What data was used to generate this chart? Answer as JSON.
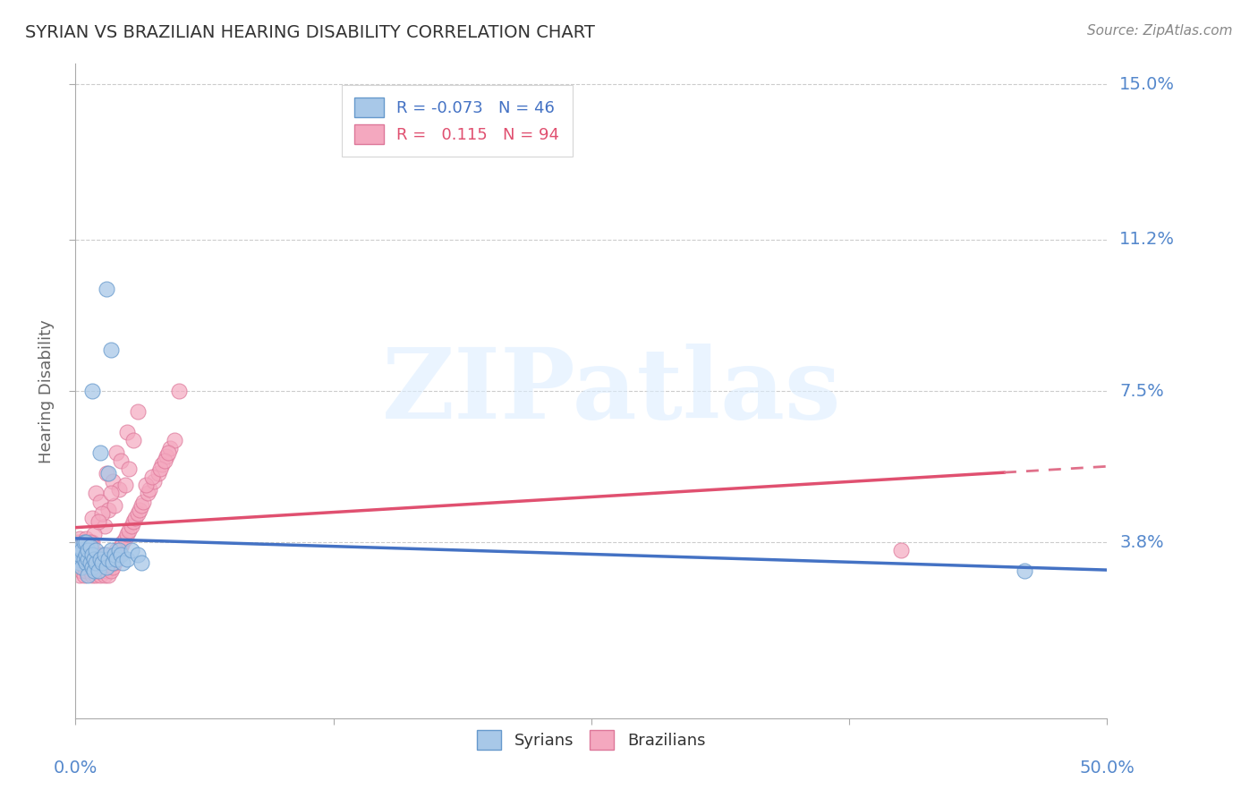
{
  "title": "SYRIAN VS BRAZILIAN HEARING DISABILITY CORRELATION CHART",
  "source": "Source: ZipAtlas.com",
  "ylabel": "Hearing Disability",
  "xlim": [
    0.0,
    0.5
  ],
  "ylim": [
    -0.005,
    0.155
  ],
  "ytick_positions": [
    0.038,
    0.075,
    0.112,
    0.15
  ],
  "ytick_labels": [
    "3.8%",
    "7.5%",
    "11.2%",
    "15.0%"
  ],
  "xtick_positions": [
    0.0,
    0.125,
    0.25,
    0.375,
    0.5
  ],
  "syrian_color": "#a8c8e8",
  "brazilian_color": "#f4a8bf",
  "syrian_edge": "#6699cc",
  "brazilian_edge": "#dd7799",
  "line_syrian_color": "#4472c4",
  "line_brazilian_color": "#e05070",
  "line_brazilian_dash_color": "#e0708a",
  "R_syrian": -0.073,
  "N_syrian": 46,
  "R_brazilian": 0.115,
  "N_brazilian": 94,
  "watermark_text": "ZIPatlas",
  "grid_color": "#cccccc",
  "title_color": "#333333",
  "axis_label_color": "#5588cc",
  "syrian_scatter_x": [
    0.001,
    0.001,
    0.002,
    0.002,
    0.002,
    0.003,
    0.003,
    0.004,
    0.004,
    0.005,
    0.005,
    0.005,
    0.006,
    0.006,
    0.006,
    0.007,
    0.007,
    0.008,
    0.008,
    0.009,
    0.009,
    0.01,
    0.01,
    0.011,
    0.012,
    0.013,
    0.014,
    0.015,
    0.016,
    0.017,
    0.018,
    0.019,
    0.02,
    0.021,
    0.022,
    0.023,
    0.025,
    0.027,
    0.03,
    0.032,
    0.008,
    0.012,
    0.016,
    0.46,
    0.015,
    0.017
  ],
  "syrian_scatter_y": [
    0.034,
    0.036,
    0.033,
    0.035,
    0.037,
    0.032,
    0.036,
    0.034,
    0.038,
    0.033,
    0.035,
    0.038,
    0.03,
    0.034,
    0.036,
    0.033,
    0.037,
    0.032,
    0.035,
    0.031,
    0.034,
    0.033,
    0.036,
    0.031,
    0.034,
    0.033,
    0.035,
    0.032,
    0.034,
    0.036,
    0.033,
    0.035,
    0.034,
    0.036,
    0.035,
    0.033,
    0.034,
    0.036,
    0.035,
    0.033,
    0.075,
    0.06,
    0.055,
    0.031,
    0.1,
    0.085
  ],
  "brazilian_scatter_x": [
    0.001,
    0.001,
    0.001,
    0.002,
    0.002,
    0.002,
    0.002,
    0.003,
    0.003,
    0.003,
    0.004,
    0.004,
    0.004,
    0.005,
    0.005,
    0.005,
    0.006,
    0.006,
    0.007,
    0.007,
    0.008,
    0.008,
    0.008,
    0.009,
    0.009,
    0.01,
    0.01,
    0.011,
    0.011,
    0.012,
    0.012,
    0.013,
    0.013,
    0.014,
    0.014,
    0.015,
    0.015,
    0.016,
    0.016,
    0.017,
    0.018,
    0.019,
    0.02,
    0.02,
    0.021,
    0.022,
    0.023,
    0.024,
    0.025,
    0.026,
    0.027,
    0.028,
    0.029,
    0.03,
    0.031,
    0.032,
    0.033,
    0.035,
    0.036,
    0.038,
    0.04,
    0.042,
    0.044,
    0.046,
    0.048,
    0.01,
    0.015,
    0.02,
    0.025,
    0.03,
    0.008,
    0.012,
    0.018,
    0.022,
    0.028,
    0.016,
    0.021,
    0.026,
    0.014,
    0.019,
    0.024,
    0.009,
    0.013,
    0.017,
    0.011,
    0.4,
    0.007,
    0.006,
    0.034,
    0.037,
    0.041,
    0.043,
    0.045,
    0.05
  ],
  "brazilian_scatter_y": [
    0.033,
    0.036,
    0.038,
    0.03,
    0.034,
    0.036,
    0.039,
    0.031,
    0.035,
    0.037,
    0.03,
    0.034,
    0.038,
    0.031,
    0.035,
    0.039,
    0.032,
    0.036,
    0.031,
    0.035,
    0.03,
    0.034,
    0.038,
    0.031,
    0.035,
    0.03,
    0.034,
    0.031,
    0.035,
    0.03,
    0.034,
    0.031,
    0.035,
    0.03,
    0.034,
    0.031,
    0.035,
    0.03,
    0.034,
    0.031,
    0.032,
    0.033,
    0.034,
    0.036,
    0.035,
    0.037,
    0.038,
    0.039,
    0.04,
    0.041,
    0.042,
    0.043,
    0.044,
    0.045,
    0.046,
    0.047,
    0.048,
    0.05,
    0.051,
    0.053,
    0.055,
    0.057,
    0.059,
    0.061,
    0.063,
    0.05,
    0.055,
    0.06,
    0.065,
    0.07,
    0.044,
    0.048,
    0.053,
    0.058,
    0.063,
    0.046,
    0.051,
    0.056,
    0.042,
    0.047,
    0.052,
    0.04,
    0.045,
    0.05,
    0.043,
    0.036,
    0.038,
    0.036,
    0.052,
    0.054,
    0.056,
    0.058,
    0.06,
    0.075
  ]
}
